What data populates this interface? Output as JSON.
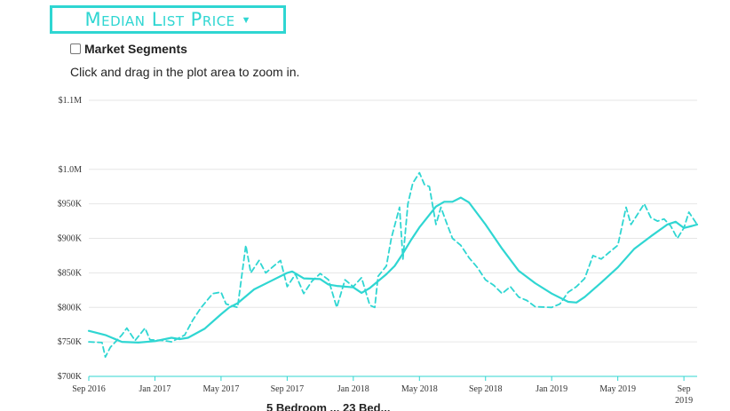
{
  "metric_selector": {
    "label": "Median List Price",
    "caret": "▼"
  },
  "market_segments": {
    "label": "Market Segments",
    "checked": false
  },
  "hint": "Click and drag in the plot area to zoom in.",
  "colors": {
    "accent": "#2fd6d2",
    "grid": "#e6e6e6",
    "text": "#333333"
  },
  "chart_data": {
    "type": "line",
    "ylim": [
      700,
      1100
    ],
    "y_tick_labels": [
      "$700K",
      "$750K",
      "$800K",
      "$850K",
      "$900K",
      "$950K",
      "$1.0M",
      "$1.1M"
    ],
    "y_tick_values": [
      700,
      750,
      800,
      850,
      900,
      950,
      1000,
      1100
    ],
    "x_tick_labels": [
      {
        "t": 0,
        "label": "Sep 2016"
      },
      {
        "t": 4,
        "label": "Jan 2017"
      },
      {
        "t": 8,
        "label": "May 2017"
      },
      {
        "t": 12,
        "label": "Sep 2017"
      },
      {
        "t": 16,
        "label": "Jan 2018"
      },
      {
        "t": 20,
        "label": "May 2018"
      },
      {
        "t": 24,
        "label": "Sep 2018"
      },
      {
        "t": 28,
        "label": "Jan 2019"
      },
      {
        "t": 32,
        "label": "May 2019"
      },
      {
        "t": 36,
        "label": "Sep\n2019"
      }
    ],
    "xlim": [
      0,
      36.8
    ],
    "series": [
      {
        "style": "solid",
        "points": [
          [
            0,
            766
          ],
          [
            1,
            760
          ],
          [
            2,
            750
          ],
          [
            3,
            749
          ],
          [
            4,
            751
          ],
          [
            5,
            756
          ],
          [
            5.5,
            754
          ],
          [
            6,
            756
          ],
          [
            7,
            769
          ],
          [
            8,
            790
          ],
          [
            8.5,
            800
          ],
          [
            9,
            806
          ],
          [
            10,
            826
          ],
          [
            11,
            838
          ],
          [
            12,
            850
          ],
          [
            12.3,
            852
          ],
          [
            13,
            842
          ],
          [
            14,
            841
          ],
          [
            14.5,
            833
          ],
          [
            15,
            831
          ],
          [
            16,
            829
          ],
          [
            16.5,
            821
          ],
          [
            17,
            828
          ],
          [
            18,
            848
          ],
          [
            18.5,
            860
          ],
          [
            19,
            878
          ],
          [
            19.5,
            898
          ],
          [
            20,
            916
          ],
          [
            21,
            946
          ],
          [
            21.5,
            953
          ],
          [
            22,
            953
          ],
          [
            22.5,
            959
          ],
          [
            23,
            952
          ],
          [
            24,
            920
          ],
          [
            25,
            885
          ],
          [
            26,
            853
          ],
          [
            27,
            835
          ],
          [
            28,
            820
          ],
          [
            29,
            808
          ],
          [
            29.5,
            807
          ],
          [
            30,
            815
          ],
          [
            31,
            836
          ],
          [
            32,
            858
          ],
          [
            33,
            885
          ],
          [
            34,
            903
          ],
          [
            35,
            920
          ],
          [
            35.5,
            924
          ],
          [
            36,
            915
          ],
          [
            36.5,
            918
          ],
          [
            36.8,
            920
          ]
        ]
      },
      {
        "style": "dashed",
        "points": [
          [
            0,
            750
          ],
          [
            0.8,
            749
          ],
          [
            1,
            728
          ],
          [
            1.3,
            742
          ],
          [
            2,
            760
          ],
          [
            2.3,
            770
          ],
          [
            2.8,
            752
          ],
          [
            3.4,
            770
          ],
          [
            3.7,
            753
          ],
          [
            4.5,
            752
          ],
          [
            5,
            750
          ],
          [
            5.8,
            760
          ],
          [
            6.3,
            782
          ],
          [
            6.8,
            800
          ],
          [
            7.5,
            820
          ],
          [
            8,
            822
          ],
          [
            8.3,
            805
          ],
          [
            9,
            800
          ],
          [
            9.5,
            890
          ],
          [
            9.8,
            850
          ],
          [
            10.3,
            868
          ],
          [
            10.7,
            850
          ],
          [
            11.3,
            862
          ],
          [
            11.6,
            868
          ],
          [
            12,
            830
          ],
          [
            12.5,
            848
          ],
          [
            13,
            820
          ],
          [
            13.5,
            838
          ],
          [
            14,
            849
          ],
          [
            14.5,
            840
          ],
          [
            15,
            800
          ],
          [
            15.5,
            840
          ],
          [
            16,
            830
          ],
          [
            16.5,
            843
          ],
          [
            17,
            803
          ],
          [
            17.3,
            800
          ],
          [
            17.5,
            845
          ],
          [
            18,
            860
          ],
          [
            18.3,
            900
          ],
          [
            18.8,
            945
          ],
          [
            19,
            870
          ],
          [
            19.3,
            950
          ],
          [
            19.6,
            980
          ],
          [
            20,
            995
          ],
          [
            20.3,
            978
          ],
          [
            20.6,
            975
          ],
          [
            21,
            920
          ],
          [
            21.3,
            945
          ],
          [
            21.6,
            925
          ],
          [
            22,
            900
          ],
          [
            22.5,
            890
          ],
          [
            23,
            872
          ],
          [
            23.5,
            858
          ],
          [
            24,
            840
          ],
          [
            24.5,
            832
          ],
          [
            25,
            820
          ],
          [
            25.5,
            830
          ],
          [
            26,
            815
          ],
          [
            26.5,
            810
          ],
          [
            27,
            801
          ],
          [
            28,
            800
          ],
          [
            28.5,
            805
          ],
          [
            29,
            822
          ],
          [
            29.5,
            830
          ],
          [
            30,
            842
          ],
          [
            30.5,
            875
          ],
          [
            31,
            870
          ],
          [
            31.5,
            880
          ],
          [
            32,
            890
          ],
          [
            32.5,
            945
          ],
          [
            32.8,
            920
          ],
          [
            33.2,
            935
          ],
          [
            33.6,
            950
          ],
          [
            34,
            930
          ],
          [
            34.4,
            925
          ],
          [
            34.8,
            928
          ],
          [
            35.2,
            918
          ],
          [
            35.6,
            900
          ],
          [
            36,
            915
          ],
          [
            36.3,
            938
          ],
          [
            36.8,
            920
          ]
        ]
      }
    ]
  },
  "footer_partial": "5 Bedroom ... 23 Bed..."
}
